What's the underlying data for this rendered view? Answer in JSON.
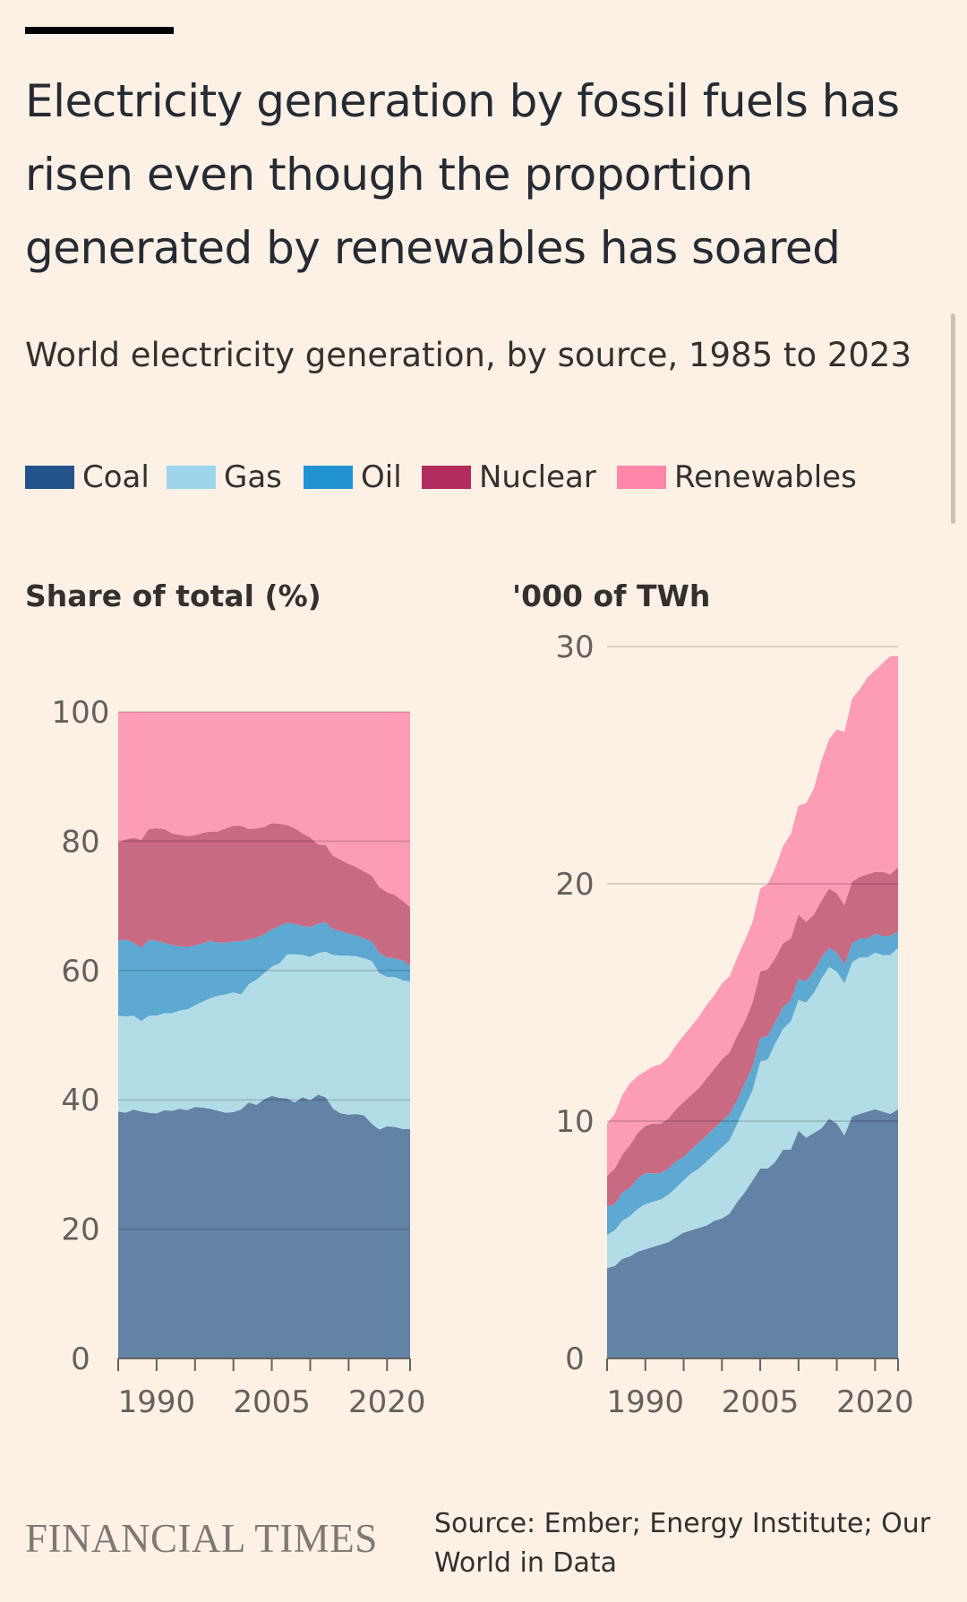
{
  "header": {
    "title": "Electricity generation by fossil fuels has risen even though the proportion generated by renewables has soared",
    "subtitle": "World electricity generation, by source, 1985 to 2023"
  },
  "legend": [
    {
      "label": "Coal",
      "color": "#24528A"
    },
    {
      "label": "Gas",
      "color": "#9DD6EA"
    },
    {
      "label": "Oil",
      "color": "#2193D0"
    },
    {
      "label": "Nuclear",
      "color": "#B22C5D"
    },
    {
      "label": "Renewables",
      "color": "#FF86A8"
    }
  ],
  "fill_colors": {
    "coal": "#6282A6",
    "gas": "#B3DDE6",
    "oil": "#5DA9D1",
    "nuclear": "#C96A83",
    "renewables": "#FD9CB5",
    "gridline": "#CCC1B7",
    "axis": "#66605C"
  },
  "chart_data": [
    {
      "type": "area",
      "stacked": true,
      "label": "Share of total (%)",
      "x": [
        1985,
        1986,
        1987,
        1988,
        1989,
        1990,
        1991,
        1992,
        1993,
        1994,
        1995,
        1996,
        1997,
        1998,
        1999,
        2000,
        2001,
        2002,
        2003,
        2004,
        2005,
        2006,
        2007,
        2008,
        2009,
        2010,
        2011,
        2012,
        2013,
        2014,
        2015,
        2016,
        2017,
        2018,
        2019,
        2020,
        2021,
        2022,
        2023
      ],
      "ylim": [
        0,
        100
      ],
      "yticks": [
        0,
        20,
        40,
        60,
        80,
        100
      ],
      "xticks": [
        1985,
        1990,
        1995,
        2000,
        2005,
        2010,
        2015,
        2020,
        2023
      ],
      "xtick_labels": [
        "1990",
        "2005",
        "2020"
      ],
      "xtick_label_values": [
        1990,
        2005,
        2020
      ],
      "series": [
        {
          "name": "Coal",
          "values": [
            38.2,
            38.0,
            38.5,
            38.2,
            38.0,
            37.9,
            38.4,
            38.3,
            38.6,
            38.4,
            38.9,
            38.8,
            38.6,
            38.3,
            38.0,
            38.1,
            38.5,
            39.6,
            39.2,
            40.1,
            40.6,
            40.3,
            40.2,
            39.6,
            40.4,
            39.9,
            40.8,
            40.4,
            38.6,
            37.9,
            37.7,
            37.8,
            37.6,
            36.3,
            35.4,
            35.9,
            35.8,
            35.5,
            35.5
          ]
        },
        {
          "name": "Gas",
          "values": [
            14.8,
            14.9,
            14.5,
            14.0,
            15.0,
            15.1,
            15.0,
            15.1,
            15.2,
            15.6,
            15.7,
            16.4,
            17.1,
            17.8,
            18.3,
            18.5,
            17.8,
            18.3,
            19.4,
            19.5,
            20.0,
            20.8,
            22.3,
            22.9,
            22.0,
            22.2,
            21.9,
            22.5,
            23.8,
            24.4,
            24.6,
            24.4,
            24.3,
            25.2,
            24.2,
            23.1,
            23.2,
            23.0,
            22.8
          ]
        },
        {
          "name": "Oil",
          "values": [
            11.6,
            11.9,
            11.3,
            11.3,
            11.7,
            11.6,
            10.9,
            10.5,
            10.0,
            9.6,
            9.3,
            9.0,
            8.9,
            8.2,
            8.0,
            7.9,
            8.2,
            6.9,
            6.5,
            6.0,
            5.8,
            5.8,
            4.9,
            4.7,
            4.5,
            4.6,
            4.5,
            4.6,
            4.0,
            3.8,
            3.4,
            3.2,
            3.1,
            3.0,
            3.1,
            3.0,
            2.9,
            3.1,
            2.4
          ]
        },
        {
          "name": "Nuclear",
          "values": [
            15.2,
            15.5,
            16.2,
            16.7,
            17.2,
            17.4,
            17.6,
            17.3,
            17.2,
            17.2,
            17.0,
            17.1,
            16.9,
            17.2,
            17.7,
            17.9,
            17.9,
            17.1,
            16.9,
            16.6,
            16.4,
            15.8,
            15.1,
            14.8,
            14.3,
            13.9,
            12.3,
            11.9,
            11.3,
            11.0,
            10.8,
            10.6,
            10.3,
            10.2,
            10.2,
            10.1,
            9.8,
            9.2,
            9.1
          ]
        },
        {
          "name": "Renewables",
          "values": [
            20.2,
            19.7,
            19.5,
            19.8,
            18.1,
            18.0,
            18.1,
            18.8,
            19.0,
            19.2,
            19.1,
            18.7,
            18.5,
            18.5,
            18.0,
            17.6,
            17.6,
            18.1,
            18.0,
            17.8,
            17.2,
            17.3,
            17.5,
            18.0,
            18.8,
            19.4,
            20.5,
            20.6,
            22.3,
            22.9,
            23.5,
            24.0,
            24.7,
            25.3,
            27.1,
            27.9,
            28.3,
            29.2,
            30.2
          ]
        }
      ]
    },
    {
      "type": "area",
      "stacked": true,
      "label": "'000 of TWh",
      "x": [
        1985,
        1986,
        1987,
        1988,
        1989,
        1990,
        1991,
        1992,
        1993,
        1994,
        1995,
        1996,
        1997,
        1998,
        1999,
        2000,
        2001,
        2002,
        2003,
        2004,
        2005,
        2006,
        2007,
        2008,
        2009,
        2010,
        2011,
        2012,
        2013,
        2014,
        2015,
        2016,
        2017,
        2018,
        2019,
        2020,
        2021,
        2022,
        2023
      ],
      "ylim": [
        0,
        30
      ],
      "yticks": [
        0,
        10,
        20,
        30
      ],
      "xticks": [
        1985,
        1990,
        1995,
        2000,
        2005,
        2010,
        2015,
        2020,
        2023
      ],
      "xtick_labels": [
        "1990",
        "2005",
        "2020"
      ],
      "xtick_label_values": [
        1990,
        2005,
        2020
      ],
      "series": [
        {
          "name": "Coal",
          "values": [
            3.8,
            3.9,
            4.2,
            4.3,
            4.5,
            4.6,
            4.7,
            4.8,
            4.9,
            5.1,
            5.3,
            5.4,
            5.5,
            5.6,
            5.8,
            5.9,
            6.1,
            6.6,
            7.0,
            7.5,
            8.0,
            8.0,
            8.3,
            8.8,
            8.8,
            9.6,
            9.3,
            9.5,
            9.7,
            10.1,
            9.9,
            9.4,
            10.2,
            10.3,
            10.4,
            10.5,
            10.4,
            10.3,
            10.5
          ]
        },
        {
          "name": "Gas",
          "values": [
            1.4,
            1.5,
            1.6,
            1.7,
            1.8,
            1.9,
            1.9,
            1.9,
            2.0,
            2.1,
            2.2,
            2.4,
            2.5,
            2.7,
            2.8,
            3.0,
            3.1,
            3.3,
            3.6,
            3.8,
            4.5,
            4.6,
            5.0,
            5.1,
            5.4,
            5.5,
            5.7,
            5.9,
            6.3,
            6.4,
            6.4,
            6.4,
            6.5,
            6.6,
            6.5,
            6.6,
            6.6,
            6.7,
            6.8
          ]
        },
        {
          "name": "Oil",
          "values": [
            1.2,
            1.1,
            1.2,
            1.2,
            1.3,
            1.3,
            1.2,
            1.1,
            1.1,
            1.1,
            1.0,
            1.0,
            1.1,
            1.1,
            1.1,
            1.1,
            1.1,
            1.0,
            1.0,
            1.0,
            1.0,
            1.0,
            0.9,
            0.9,
            0.9,
            0.9,
            0.9,
            0.9,
            0.9,
            0.8,
            0.8,
            0.8,
            0.8,
            0.8,
            0.8,
            0.8,
            0.8,
            0.8,
            0.7
          ]
        },
        {
          "name": "Nuclear",
          "values": [
            1.3,
            1.5,
            1.6,
            1.8,
            1.9,
            2.0,
            2.1,
            2.1,
            2.1,
            2.2,
            2.3,
            2.3,
            2.3,
            2.4,
            2.5,
            2.6,
            2.6,
            2.7,
            2.6,
            2.7,
            2.8,
            2.8,
            2.7,
            2.7,
            2.6,
            2.7,
            2.5,
            2.4,
            2.4,
            2.5,
            2.5,
            2.5,
            2.6,
            2.6,
            2.7,
            2.6,
            2.7,
            2.6,
            2.7
          ]
        },
        {
          "name": "Renewables",
          "values": [
            2.2,
            2.3,
            2.5,
            2.6,
            2.4,
            2.3,
            2.4,
            2.5,
            2.6,
            2.7,
            2.8,
            2.9,
            3.0,
            3.1,
            3.1,
            3.2,
            3.2,
            3.3,
            3.4,
            3.4,
            3.5,
            3.6,
            3.8,
            4.1,
            4.4,
            4.6,
            5.0,
            5.3,
            5.9,
            6.3,
            6.9,
            7.3,
            7.7,
            7.9,
            8.3,
            8.5,
            8.8,
            9.2,
            8.9
          ]
        }
      ]
    }
  ],
  "footer": {
    "logo_text": "FINANCIAL TIMES",
    "source": "Source: Ember; Energy Institute; Our World in Data"
  }
}
